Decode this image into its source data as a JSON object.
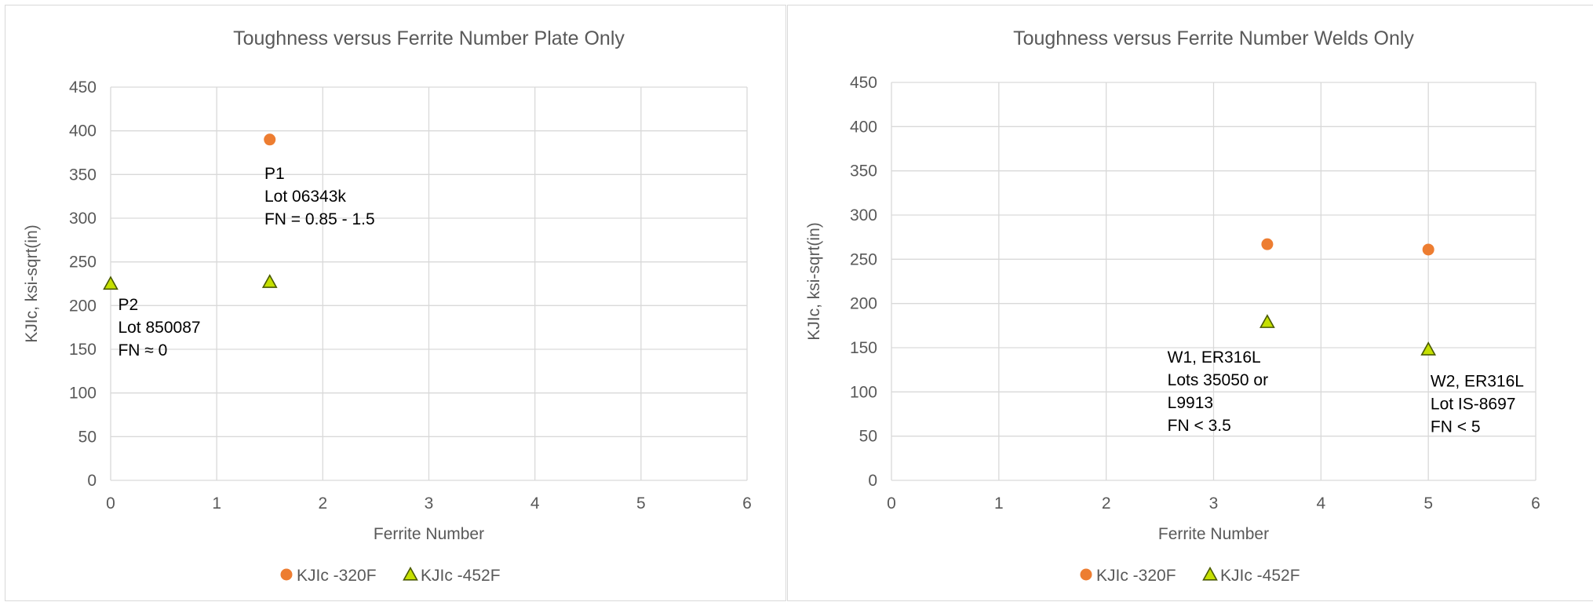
{
  "chart_data": [
    {
      "type": "scatter",
      "title": "Toughness versus Ferrite Number Plate Only",
      "xlabel": "Ferrite Number",
      "ylabel": "KJIc, ksi-sqrt(in)",
      "xlim": [
        0,
        6
      ],
      "ylim": [
        0,
        450
      ],
      "xticks": [
        "0",
        "1",
        "2",
        "3",
        "4",
        "5",
        "6"
      ],
      "yticks": [
        "0",
        "50",
        "100",
        "150",
        "200",
        "250",
        "300",
        "350",
        "400",
        "450"
      ],
      "grid": true,
      "legend_position": "bottom",
      "series": [
        {
          "name": "KJIc -320F",
          "marker": "circle",
          "color": "#ED7D31",
          "points": [
            {
              "x": 1.5,
              "y": 390
            }
          ]
        },
        {
          "name": "KJIc -452F",
          "marker": "triangle",
          "color": "#C5E000",
          "points": [
            {
              "x": 0,
              "y": 225
            },
            {
              "x": 1.5,
              "y": 227
            }
          ]
        }
      ],
      "annotations": [
        {
          "lines": [
            "P1",
            "Lot 06343k",
            "FN  = 0.85 - 1.5"
          ],
          "x": 1.45,
          "y": 345
        },
        {
          "lines": [
            "P2",
            "Lot 850087",
            "FN ≈ 0"
          ],
          "x": 0.07,
          "y": 195
        }
      ]
    },
    {
      "type": "scatter",
      "title": "Toughness versus Ferrite Number Welds Only",
      "xlabel": "Ferrite Number",
      "ylabel": "KJIc, ksi-sqrt(in)",
      "xlim": [
        0,
        6
      ],
      "ylim": [
        0,
        450
      ],
      "xticks": [
        "0",
        "1",
        "2",
        "3",
        "4",
        "5",
        "6"
      ],
      "yticks": [
        "0",
        "50",
        "100",
        "150",
        "200",
        "250",
        "300",
        "350",
        "400",
        "450"
      ],
      "grid": true,
      "legend_position": "bottom",
      "series": [
        {
          "name": "KJIc -320F",
          "marker": "circle",
          "color": "#ED7D31",
          "points": [
            {
              "x": 3.5,
              "y": 267
            },
            {
              "x": 5,
              "y": 261
            }
          ]
        },
        {
          "name": "KJIc -452F",
          "marker": "triangle",
          "color": "#C5E000",
          "points": [
            {
              "x": 3.5,
              "y": 179
            },
            {
              "x": 5,
              "y": 148
            }
          ]
        }
      ],
      "annotations": [
        {
          "lines": [
            "W1, ER316L",
            "Lots 35050 or",
            "L9913",
            "FN  < 3.5"
          ],
          "x": 2.57,
          "y": 133
        },
        {
          "lines": [
            "W2, ER316L",
            "Lot IS-8697",
            "FN  < 5"
          ],
          "x": 5.02,
          "y": 106
        }
      ]
    }
  ]
}
